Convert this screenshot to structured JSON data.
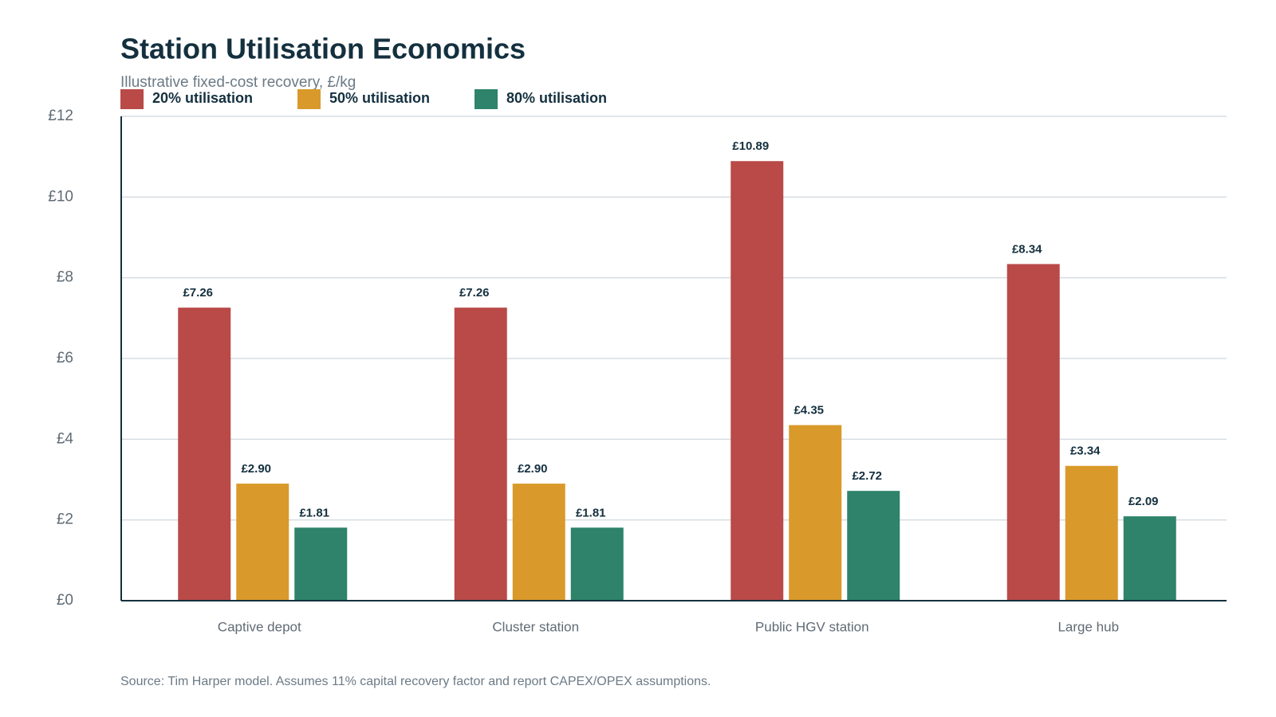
{
  "chart_data": {
    "type": "bar",
    "title": "Station Utilisation Economics",
    "subtitle": "Illustrative fixed-cost recovery, £/kg",
    "source": "Source: Tim Harper model. Assumes 11% capital recovery factor and report CAPEX/OPEX assumptions.",
    "categories": [
      "Captive depot",
      "Cluster station",
      "Public HGV station",
      "Large hub"
    ],
    "series": [
      {
        "name": "20% utilisation",
        "color": "#b94a48",
        "values": [
          7.26,
          7.26,
          10.89,
          8.34
        ],
        "value_labels": [
          "£7.26",
          "£7.26",
          "£10.89",
          "£8.34"
        ]
      },
      {
        "name": "50% utilisation",
        "color": "#d99a2b",
        "values": [
          2.9,
          2.9,
          4.35,
          3.34
        ],
        "value_labels": [
          "£2.90",
          "£2.90",
          "£4.35",
          "£3.34"
        ]
      },
      {
        "name": "80% utilisation",
        "color": "#2e836a",
        "values": [
          1.81,
          1.81,
          2.72,
          2.09
        ],
        "value_labels": [
          "£1.81",
          "£1.81",
          "£2.72",
          "£2.09"
        ]
      }
    ],
    "ylim": [
      0,
      12
    ],
    "yticks": [
      {
        "value": 0,
        "label": "£0"
      },
      {
        "value": 2,
        "label": "£2"
      },
      {
        "value": 4,
        "label": "£4"
      },
      {
        "value": 6,
        "label": "£6"
      },
      {
        "value": 8,
        "label": "£8"
      },
      {
        "value": 10,
        "label": "£10"
      },
      {
        "value": 12,
        "label": "£12"
      }
    ],
    "grid": true
  }
}
